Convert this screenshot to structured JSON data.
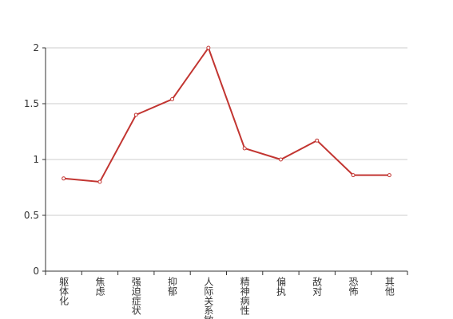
{
  "chart_data": {
    "type": "line",
    "categories": [
      "躯体化",
      "焦虑",
      "强迫症状",
      "抑郁",
      "人际关系敏感",
      "精神病性",
      "偏执",
      "敌对",
      "恐怖",
      "其他"
    ],
    "series": [
      {
        "color": "#c23531",
        "values": [
          0.83,
          0.8,
          1.4,
          1.54,
          2,
          1.1,
          1,
          1.17,
          0.86,
          0.86
        ]
      }
    ],
    "ylim": [
      0,
      2
    ],
    "yticks": [
      0,
      0.5,
      1,
      1.5,
      2
    ],
    "grid": true
  }
}
